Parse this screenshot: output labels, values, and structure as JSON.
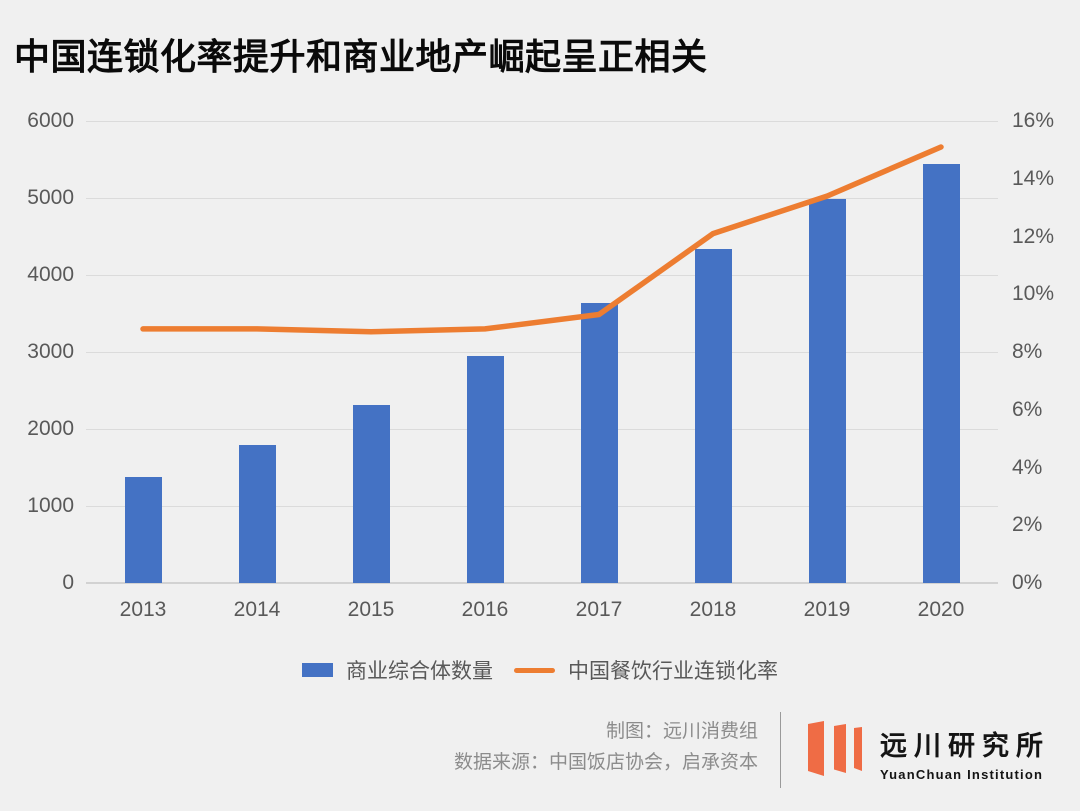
{
  "title": "中国连锁化率提升和商业地产崛起呈正相关",
  "chart_data": {
    "type": "bar",
    "subtype": "combo-bar-line-dual-axis",
    "categories": [
      "2013",
      "2014",
      "2015",
      "2016",
      "2017",
      "2018",
      "2019",
      "2020"
    ],
    "series": [
      {
        "name": "商业综合体数量",
        "type": "bar",
        "axis": "left",
        "color": "#4472C4",
        "values": [
          1380,
          1790,
          2310,
          2950,
          3640,
          4340,
          4990,
          5440
        ]
      },
      {
        "name": "中国餐饮行业连锁化率",
        "type": "line",
        "axis": "right",
        "color": "#ED7D31",
        "unit": "%",
        "values": [
          8.8,
          8.8,
          8.7,
          8.8,
          9.3,
          12.1,
          13.4,
          15.1
        ]
      }
    ],
    "left_axis": {
      "min": 0,
      "max": 6000,
      "step": 1000,
      "tick_labels": [
        "0",
        "1000",
        "2000",
        "3000",
        "4000",
        "5000",
        "6000"
      ]
    },
    "right_axis": {
      "min": 0,
      "max": 16,
      "step": 2,
      "tick_labels": [
        "0%",
        "2%",
        "4%",
        "6%",
        "8%",
        "10%",
        "12%",
        "14%",
        "16%"
      ]
    },
    "grid": "horizontal-on",
    "legend_position": "bottom"
  },
  "footer": {
    "credit_line1": "制图：远川消费组",
    "credit_line2": "数据来源：中国饭店协会，启承资本"
  },
  "logo": {
    "name_cn": "远川研究所",
    "name_en": "YuanChuan Institution",
    "mark": "three-orange-banner-stripes",
    "mark_color": "#EF6C45"
  },
  "colors": {
    "background": "#F0F0F0",
    "bar": "#4472C4",
    "line": "#ED7D31",
    "axis_text": "#595959",
    "gridline": "#DBDBDB",
    "title_text": "#0A0A0A",
    "credit_text": "#8C8C8C"
  }
}
